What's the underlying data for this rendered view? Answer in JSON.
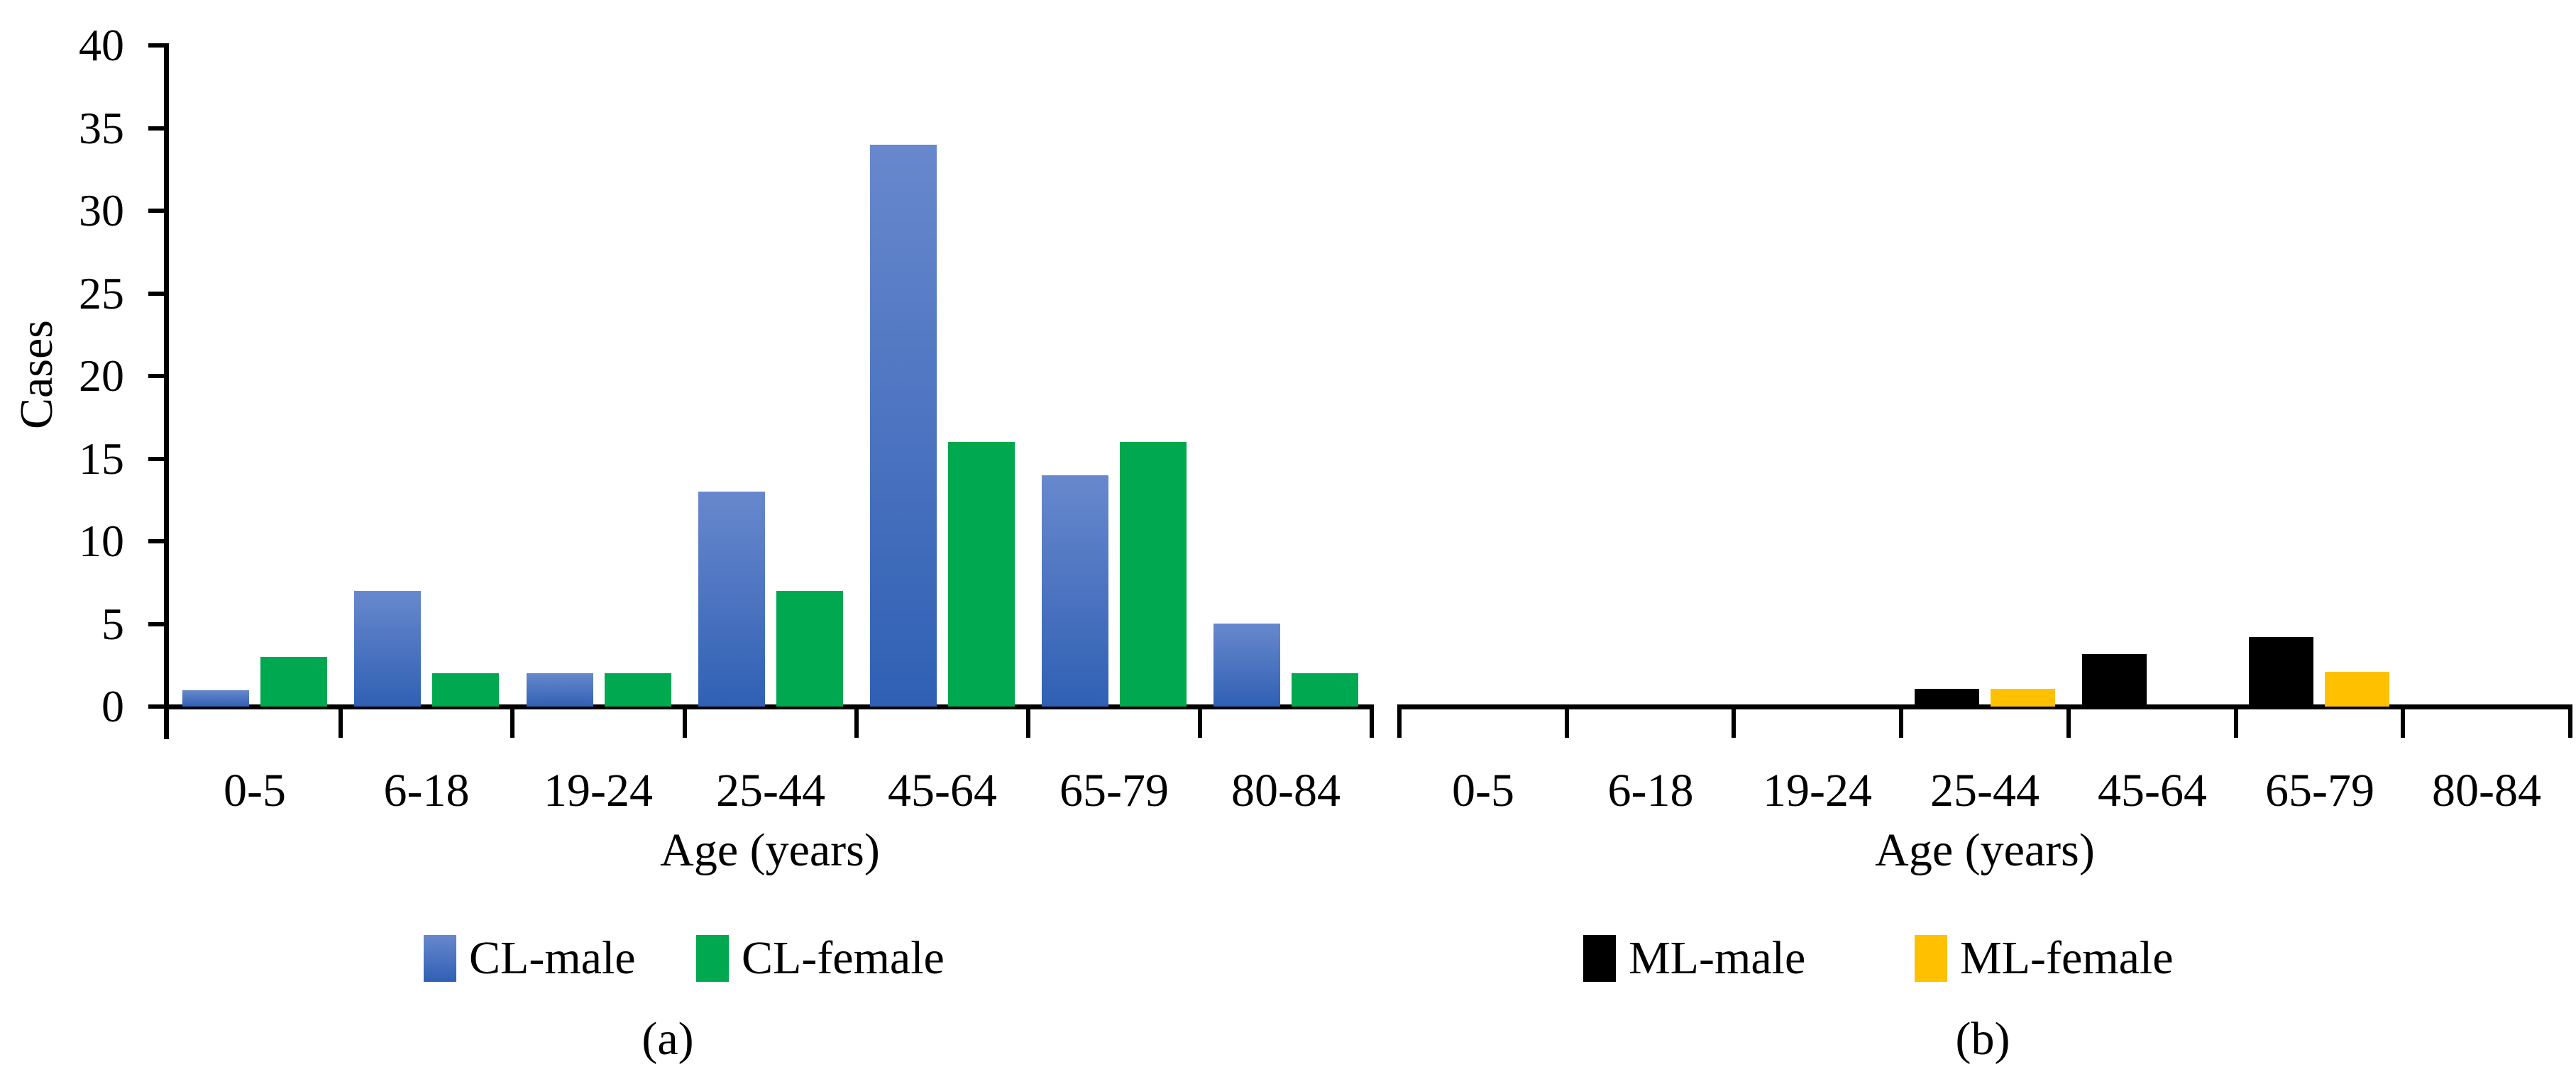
{
  "figure": {
    "captions": {
      "a": "(a)",
      "b": "(b)"
    }
  },
  "chart_data": [
    {
      "panel": "a",
      "type": "bar",
      "categories": [
        "0-5",
        "6-18",
        "19-24",
        "25-44",
        "45-64",
        "65-79",
        "80-84"
      ],
      "series": [
        {
          "name": "CL-male",
          "values": [
            1,
            7,
            2,
            13,
            34,
            14,
            5
          ],
          "fill_top": "#6888CD",
          "fill_bottom": "#3060B4"
        },
        {
          "name": "CL-female",
          "values": [
            3,
            2,
            2,
            7,
            16,
            16,
            2
          ],
          "fill": "#00A84F"
        }
      ],
      "xlabel": "Age (years)",
      "ylabel": "Cases",
      "ylim": [
        0,
        40
      ],
      "yticks": [
        0,
        5,
        10,
        15,
        20,
        25,
        30,
        35,
        40
      ],
      "y_axis_shown": true,
      "grid": false,
      "legend_position": "bottom",
      "caption": "(a)"
    },
    {
      "panel": "b",
      "type": "bar",
      "categories": [
        "0-5",
        "6-18",
        "19-24",
        "25-44",
        "45-64",
        "65-79",
        "80-84"
      ],
      "series": [
        {
          "name": "ML-male",
          "values": [
            0,
            0,
            0,
            1,
            3,
            4,
            0
          ],
          "fill": "#000000"
        },
        {
          "name": "ML-female",
          "values": [
            0,
            0,
            0,
            1,
            0,
            2,
            0
          ],
          "fill": "#FFC000"
        }
      ],
      "xlabel": "Age (years)",
      "ylabel": "",
      "ylim": [
        0,
        40
      ],
      "yticks": [],
      "y_axis_shown": false,
      "grid": false,
      "legend_position": "bottom",
      "caption": "(b)"
    }
  ]
}
